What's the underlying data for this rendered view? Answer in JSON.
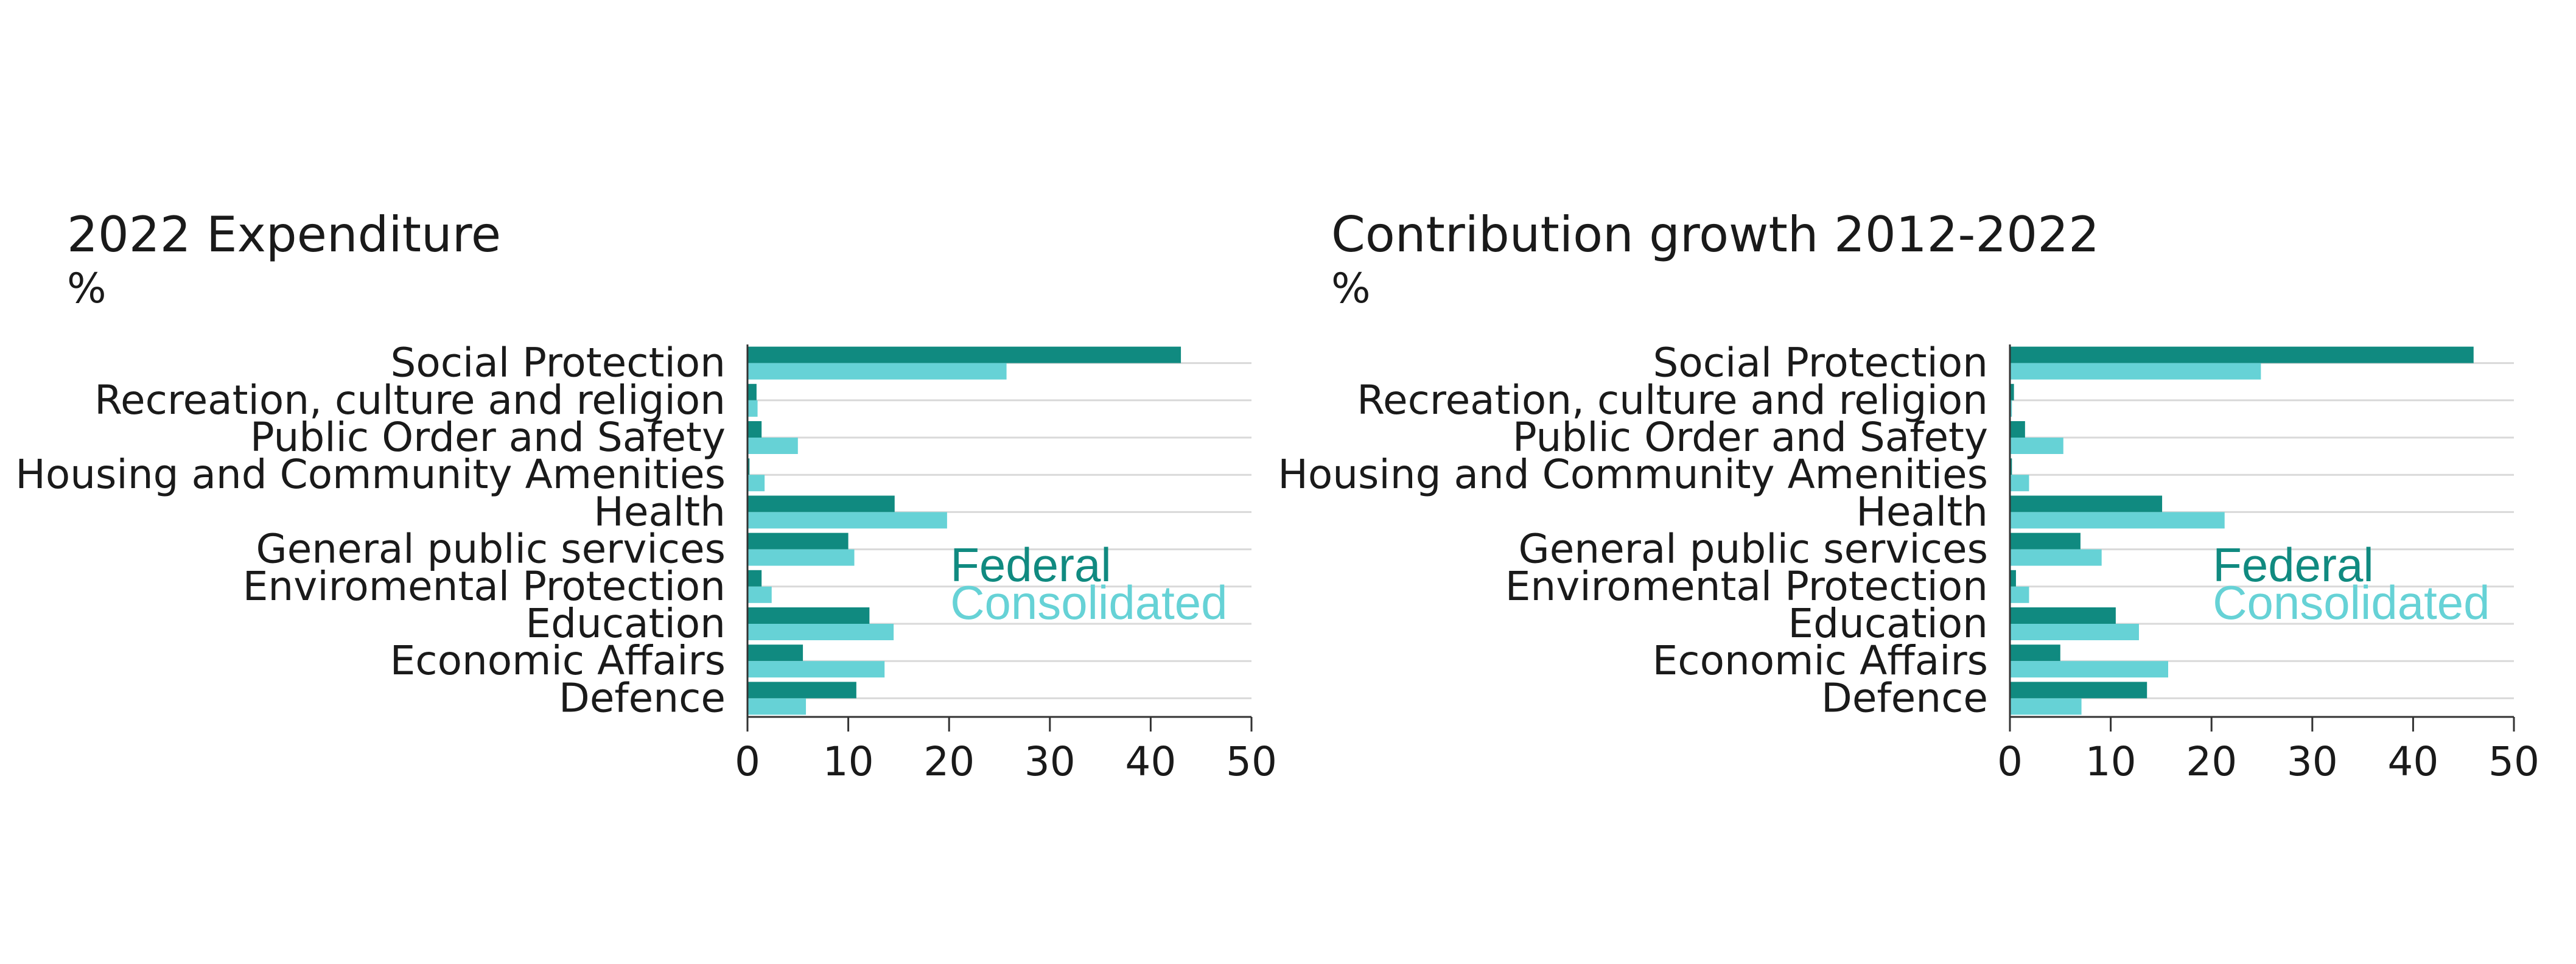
{
  "colors": {
    "federal": "#108a80",
    "consolidated": "#66d2d6",
    "grid": "#d9d9d9",
    "axis": "#333333"
  },
  "chart_data": [
    {
      "type": "bar",
      "orientation": "horizontal",
      "title": "2022 Expenditure",
      "unit_label": "%",
      "categories": [
        "Social Protection",
        "Recreation, culture and religion",
        "Public Order and Safety",
        "Housing and Community Amenities",
        "Health",
        "General public services",
        "Enviromental Protection",
        "Education",
        "Economic Affairs",
        "Defence"
      ],
      "series": [
        {
          "name": "Federal",
          "values": [
            43.0,
            0.9,
            1.4,
            0.2,
            14.6,
            10.0,
            1.4,
            12.1,
            5.5,
            10.8
          ]
        },
        {
          "name": "Consolidated",
          "values": [
            25.7,
            1.0,
            5.0,
            1.7,
            19.8,
            10.6,
            2.4,
            14.5,
            13.6,
            5.8
          ]
        }
      ],
      "xlim": [
        0,
        50
      ],
      "xticks": [
        "0",
        "10",
        "20",
        "30",
        "40",
        "50"
      ],
      "grid": true,
      "legend_position": "right"
    },
    {
      "type": "bar",
      "orientation": "horizontal",
      "title": "Contribution growth 2012-2022",
      "unit_label": "%",
      "categories": [
        "Social Protection",
        "Recreation, culture and religion",
        "Public Order and Safety",
        "Housing and Community Amenities",
        "Health",
        "General public services",
        "Enviromental Protection",
        "Education",
        "Economic Affairs",
        "Defence"
      ],
      "series": [
        {
          "name": "Federal",
          "values": [
            46.0,
            0.4,
            1.5,
            0.2,
            15.1,
            7.0,
            0.6,
            10.5,
            5.0,
            13.6
          ]
        },
        {
          "name": "Consolidated",
          "values": [
            24.9,
            0.2,
            5.3,
            1.9,
            21.3,
            9.1,
            1.9,
            12.8,
            15.7,
            7.1
          ]
        }
      ],
      "xlim": [
        0,
        50
      ],
      "xticks": [
        "0",
        "10",
        "20",
        "30",
        "40",
        "50"
      ],
      "grid": true,
      "legend_position": "right"
    }
  ]
}
